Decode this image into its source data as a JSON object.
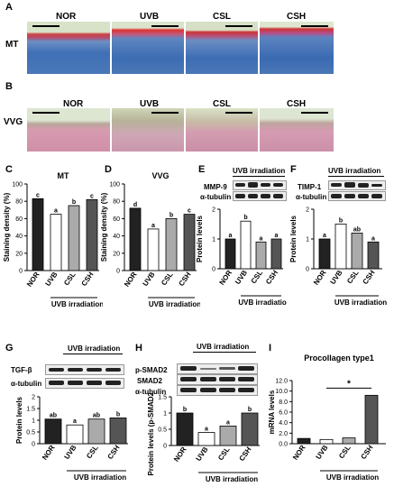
{
  "panels": {
    "A": "A",
    "B": "B",
    "C": "C",
    "D": "D",
    "E": "E",
    "F": "F",
    "G": "G",
    "H": "H",
    "I": "I"
  },
  "groups": [
    "NOR",
    "UVB",
    "CSL",
    "CSH"
  ],
  "stain_labels": {
    "mt": "MT",
    "vvg": "VVG"
  },
  "uvb_label": "UVB irradiation",
  "ylabels": {
    "staining": "Staining density (%)",
    "protein": "Protein levels",
    "psmad": "Protein levels (p-SMAD2/SMAD)",
    "mrna": "mRNA levels"
  },
  "blot_labels": {
    "mmp9": "MMP-9",
    "timp1": "TIMP-1",
    "tgfb": "TGF-β",
    "psmad2": "p-SMAD2",
    "smad2": "SMAD2",
    "tubulin": "α-tubulin"
  },
  "colors": {
    "nor": "#222222",
    "uvb": "#ffffff",
    "csl": "#aaaaaa",
    "csh": "#555555"
  },
  "chart_data": [
    {
      "panel": "C",
      "type": "bar",
      "title": "MT",
      "categories": [
        "NOR",
        "UVB",
        "CSL",
        "CSH"
      ],
      "values": [
        83,
        65,
        75,
        82
      ],
      "letters": [
        "c",
        "a",
        "b",
        "c"
      ],
      "ylabel": "Staining density (%)",
      "xlabel": "UVB irradiation",
      "ylim": [
        0,
        100
      ],
      "yticks": [
        0,
        20,
        40,
        60,
        80,
        100
      ]
    },
    {
      "panel": "D",
      "type": "bar",
      "title": "VVG",
      "categories": [
        "NOR",
        "UVB",
        "CSL",
        "CSH"
      ],
      "values": [
        72,
        48,
        60,
        65
      ],
      "letters": [
        "d",
        "a",
        "b",
        "c"
      ],
      "ylabel": "Staining density (%)",
      "xlabel": "UVB irradiation",
      "ylim": [
        0,
        100
      ],
      "yticks": [
        0,
        20,
        40,
        60,
        80,
        100
      ]
    },
    {
      "panel": "E",
      "type": "bar",
      "categories": [
        "NOR",
        "UVB",
        "CSL",
        "CSH"
      ],
      "values": [
        1.0,
        1.6,
        0.9,
        1.0
      ],
      "letters": [
        "a",
        "b",
        "a",
        "a"
      ],
      "ylabel": "Protein levels",
      "xlabel": "UVB irradiation",
      "ylim": [
        0,
        2
      ],
      "yticks": [
        0,
        1,
        2
      ]
    },
    {
      "panel": "F",
      "type": "bar",
      "categories": [
        "NOR",
        "UVB",
        "CSL",
        "CSH"
      ],
      "values": [
        1.0,
        1.5,
        1.2,
        0.9
      ],
      "letters": [
        "a",
        "b",
        "ab",
        "a"
      ],
      "ylabel": "Protein levels",
      "xlabel": "UVB irradiation",
      "ylim": [
        0,
        2
      ],
      "yticks": [
        0,
        1,
        2
      ]
    },
    {
      "panel": "G",
      "type": "bar",
      "categories": [
        "NOR",
        "UVB",
        "CSL",
        "CSH"
      ],
      "values": [
        1.05,
        0.8,
        1.05,
        1.1
      ],
      "letters": [
        "ab",
        "a",
        "ab",
        "b"
      ],
      "ylabel": "Protein levels",
      "xlabel": "UVB irradiation",
      "ylim": [
        0,
        2
      ],
      "yticks": [
        0,
        0.5,
        1,
        1.5,
        2
      ]
    },
    {
      "panel": "H",
      "type": "bar",
      "categories": [
        "NOR",
        "UVB",
        "CSL",
        "CSH"
      ],
      "values": [
        1.0,
        0.4,
        0.6,
        1.0
      ],
      "letters": [
        "b",
        "a",
        "a",
        "b"
      ],
      "ylabel": "Protein levels (p-SMAD2/SMAD)",
      "xlabel": "UVB irradiation",
      "ylim": [
        0,
        1.5
      ],
      "yticks": [
        0,
        0.5,
        1,
        1.5
      ]
    },
    {
      "panel": "I",
      "type": "bar",
      "title": "Procollagen type1",
      "categories": [
        "NOR",
        "UVB",
        "CSL",
        "CSH"
      ],
      "values": [
        1.0,
        0.8,
        1.1,
        9.2
      ],
      "letters": [
        "",
        "",
        "",
        ""
      ],
      "significance": "*",
      "ylabel": "mRNA levels",
      "xlabel": "UVB irradiation",
      "ylim": [
        0,
        12
      ],
      "yticks": [
        0.0,
        2.0,
        4.0,
        6.0,
        8.0,
        10.0,
        12.0
      ],
      "ytick_labels": [
        "0.0",
        "2.0",
        "4.0",
        "6.0",
        "8.0",
        "10.0",
        "12.0"
      ]
    }
  ]
}
